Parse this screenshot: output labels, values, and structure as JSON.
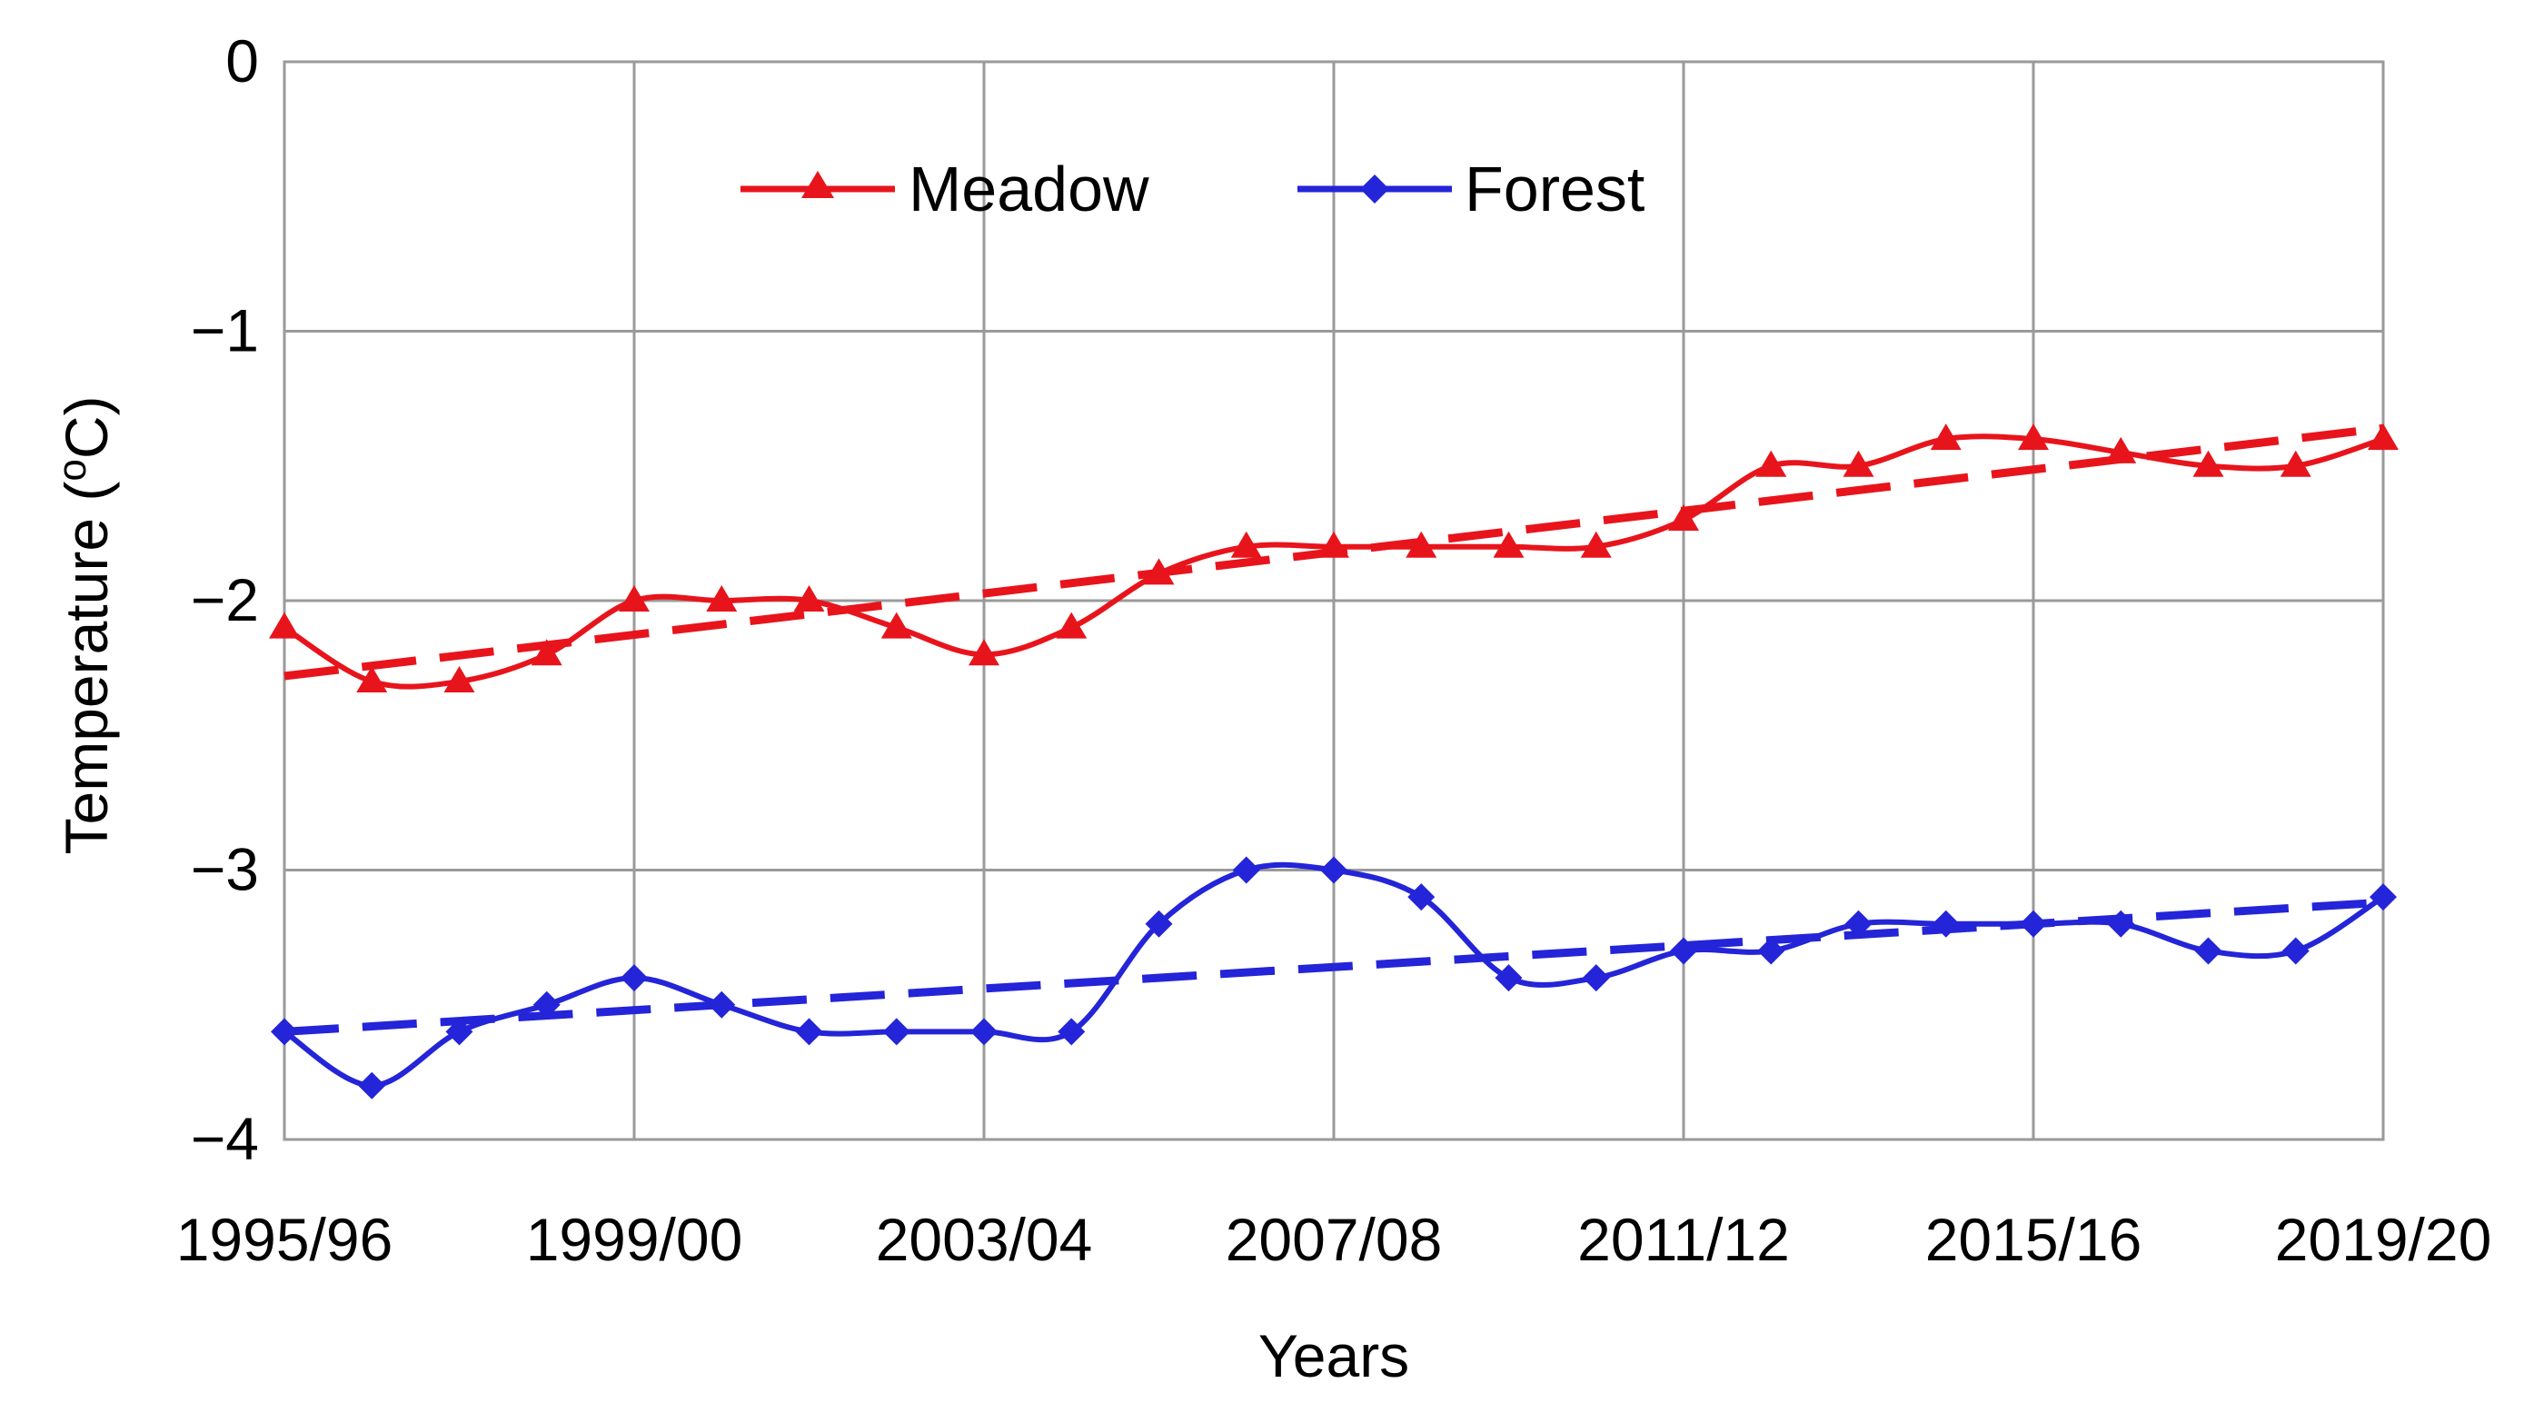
{
  "chart_data": {
    "type": "line",
    "title": "",
    "xlabel": "Years",
    "ylabel": "Temperature (",
    "ylabel_sup": "o",
    "ylabel_unit": "C)",
    "ylim": [
      -4,
      0
    ],
    "yticks": [
      0,
      -1,
      -2,
      -3,
      -4
    ],
    "ytick_labels": [
      "0",
      "−1",
      "−2",
      "−3",
      "−4"
    ],
    "xtick_labels": [
      "1995/96",
      "1999/00",
      "2003/04",
      "2007/08",
      "2011/12",
      "2015/16",
      "2019/20"
    ],
    "xtick_positions": [
      0,
      4,
      8,
      12,
      16,
      20,
      24
    ],
    "x": [
      0,
      1,
      2,
      3,
      4,
      5,
      6,
      7,
      8,
      9,
      10,
      11,
      12,
      13,
      14,
      15,
      16,
      17,
      18,
      19,
      20,
      21,
      22,
      23,
      24
    ],
    "grid": true,
    "legend": "top-center",
    "series": [
      {
        "name": "Meadow",
        "color": "#e8141c",
        "marker": "triangle",
        "values": [
          -2.1,
          -2.3,
          -2.3,
          -2.2,
          -2.0,
          -2.0,
          -2.0,
          -2.1,
          -2.2,
          -2.1,
          -1.9,
          -1.8,
          -1.8,
          -1.8,
          -1.8,
          -1.8,
          -1.7,
          -1.5,
          -1.5,
          -1.4,
          -1.4,
          -1.45,
          -1.5,
          -1.5,
          -1.4
        ],
        "trend": [
          -2.28,
          -1.36
        ]
      },
      {
        "name": "Forest",
        "color": "#2424d8",
        "marker": "diamond",
        "values": [
          -3.6,
          -3.8,
          -3.6,
          -3.5,
          -3.4,
          -3.5,
          -3.6,
          -3.6,
          -3.6,
          -3.6,
          -3.2,
          -3.0,
          -3.0,
          -3.1,
          -3.4,
          -3.4,
          -3.3,
          -3.3,
          -3.2,
          -3.2,
          -3.2,
          -3.2,
          -3.3,
          -3.3,
          -3.1
        ],
        "trend": [
          -3.6,
          -3.12
        ]
      }
    ]
  }
}
